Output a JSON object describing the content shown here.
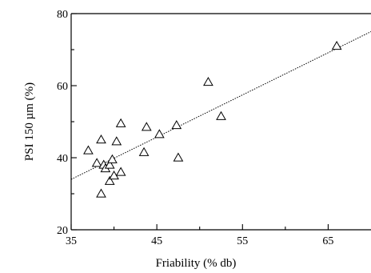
{
  "chart_data": {
    "type": "scatter",
    "xlabel": "Friability (% db)",
    "ylabel": "PSI 150 µm (%)",
    "xlim": [
      35,
      70
    ],
    "ylim": [
      20,
      80
    ],
    "x_ticks": [
      35,
      45,
      55,
      65
    ],
    "y_ticks": [
      20,
      40,
      60,
      80
    ],
    "x_tick_labels": [
      "35",
      "45",
      "55",
      "65"
    ],
    "y_tick_labels": [
      "20",
      "40",
      "60",
      "80"
    ],
    "grid": false,
    "marker": "open-triangle",
    "trendline": {
      "style": "dotted",
      "x": [
        35,
        70
      ],
      "y": [
        34,
        75
      ]
    },
    "points": [
      {
        "x": 37.0,
        "y": 42
      },
      {
        "x": 38.0,
        "y": 38.5
      },
      {
        "x": 38.5,
        "y": 45
      },
      {
        "x": 38.5,
        "y": 30
      },
      {
        "x": 38.8,
        "y": 38
      },
      {
        "x": 39.0,
        "y": 37
      },
      {
        "x": 39.5,
        "y": 38
      },
      {
        "x": 39.5,
        "y": 33.5
      },
      {
        "x": 39.8,
        "y": 39.5
      },
      {
        "x": 40.0,
        "y": 35
      },
      {
        "x": 40.3,
        "y": 44.5
      },
      {
        "x": 40.8,
        "y": 36
      },
      {
        "x": 40.8,
        "y": 49.5
      },
      {
        "x": 43.5,
        "y": 41.5
      },
      {
        "x": 43.8,
        "y": 48.5
      },
      {
        "x": 45.3,
        "y": 46.5
      },
      {
        "x": 47.3,
        "y": 49
      },
      {
        "x": 47.5,
        "y": 40
      },
      {
        "x": 51.0,
        "y": 61
      },
      {
        "x": 52.5,
        "y": 51.5
      },
      {
        "x": 66.0,
        "y": 71
      }
    ]
  }
}
